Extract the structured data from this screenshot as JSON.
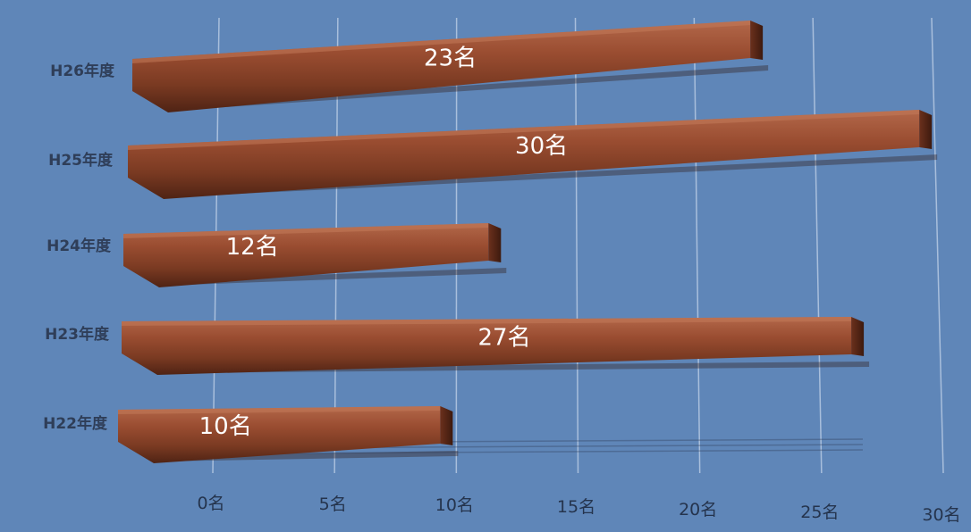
{
  "chart_data": {
    "type": "bar",
    "orientation": "horizontal",
    "title": "",
    "xlabel": "",
    "ylabel": "",
    "categories": [
      "H26年度",
      "H25年度",
      "H24年度",
      "H23年度",
      "H22年度"
    ],
    "values": [
      23,
      30,
      12,
      27,
      10
    ],
    "data_labels": [
      "23名",
      "30名",
      "12名",
      "27名",
      "10名"
    ],
    "x_ticks": [
      {
        "value": 0,
        "label": "0名"
      },
      {
        "value": 5,
        "label": "5名"
      },
      {
        "value": 10,
        "label": "10名"
      },
      {
        "value": 15,
        "label": "15名"
      },
      {
        "value": 20,
        "label": "20名"
      },
      {
        "value": 25,
        "label": "25名"
      },
      {
        "value": 30,
        "label": "30名"
      }
    ],
    "xlim": [
      0,
      30
    ],
    "grid": true,
    "legend": "none",
    "colors": {
      "background": "#5f86b8",
      "bar_top": "#a3583a",
      "bar_mid": "#8a4329",
      "bar_bottom": "#4f2314",
      "bar_shadow": "#2e140b",
      "gridline": "#a9bfdc"
    }
  }
}
